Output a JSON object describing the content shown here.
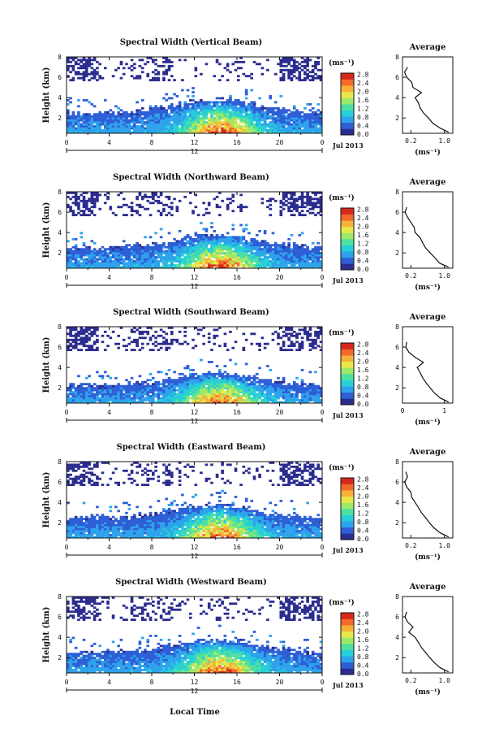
{
  "figure": {
    "x_axis_label": "Local Time",
    "date_label": "Jul 2013",
    "colorbar_unit": "(ms⁻¹)",
    "colorbar_ticks": [
      "0.0",
      "0.4",
      "0.8",
      "1.2",
      "1.6",
      "2.0",
      "2.4",
      "2.8"
    ],
    "colorbar_colors": [
      "#2b2d8f",
      "#2f5fd6",
      "#2ea3ec",
      "#27cfd6",
      "#4fe0a0",
      "#9ee86a",
      "#e8e84a",
      "#f7b03a",
      "#f36a2a",
      "#d7281e"
    ],
    "avg_title": "Average",
    "avg_xlabel": "(ms⁻¹)"
  },
  "chart_data": [
    {
      "type": "heatmap",
      "title": "Spectral Width (Vertical Beam)",
      "ylabel": "Height (km)",
      "xlabel": "Local Time",
      "x_ticks": [
        "0",
        "4",
        "8",
        "12",
        "16",
        "20",
        "0"
      ],
      "x_sub_label": "12",
      "y_ticks": [
        "2",
        "4",
        "6",
        "8"
      ],
      "ylim": [
        0.5,
        8
      ],
      "xlim": [
        0,
        24
      ],
      "colorbar": {
        "unit": "(ms⁻¹)",
        "range": [
          0,
          2.8
        ]
      },
      "date": "Jul 2013",
      "average": {
        "title": "Average",
        "xlabel": "(ms⁻¹)",
        "x_ticks": [
          "0.2",
          "1.0"
        ],
        "y_ticks": [
          "2",
          "4",
          "6",
          "8"
        ],
        "xlim": [
          0,
          1.2
        ],
        "profile": [
          [
            1.1,
            0.6
          ],
          [
            0.9,
            1
          ],
          [
            0.72,
            1.5
          ],
          [
            0.62,
            2
          ],
          [
            0.5,
            2.5
          ],
          [
            0.42,
            3
          ],
          [
            0.38,
            3.5
          ],
          [
            0.3,
            4
          ],
          [
            0.45,
            4.5
          ],
          [
            0.25,
            5
          ],
          [
            0.22,
            5.5
          ],
          [
            0.1,
            6
          ],
          [
            0.05,
            6.5
          ],
          [
            0.12,
            7
          ]
        ]
      }
    },
    {
      "type": "heatmap",
      "title": "Spectral Width (Northward Beam)",
      "ylabel": "Height (km)",
      "xlabel": "Local Time",
      "x_ticks": [
        "0",
        "4",
        "8",
        "12",
        "16",
        "20",
        "0"
      ],
      "x_sub_label": "12",
      "y_ticks": [
        "2",
        "4",
        "6",
        "8"
      ],
      "ylim": [
        0.5,
        8
      ],
      "xlim": [
        0,
        24
      ],
      "colorbar": {
        "unit": "(ms⁻¹)",
        "range": [
          0,
          2.8
        ]
      },
      "date": "Jul 2013",
      "average": {
        "title": "Average",
        "xlabel": "(ms⁻¹)",
        "x_ticks": [
          "0.2",
          "1.0"
        ],
        "y_ticks": [
          "2",
          "4",
          "6",
          "8"
        ],
        "xlim": [
          0,
          1.2
        ],
        "profile": [
          [
            1.1,
            0.6
          ],
          [
            0.88,
            1
          ],
          [
            0.78,
            1.5
          ],
          [
            0.66,
            2
          ],
          [
            0.55,
            2.5
          ],
          [
            0.48,
            3
          ],
          [
            0.42,
            3.5
          ],
          [
            0.3,
            4
          ],
          [
            0.28,
            4.5
          ],
          [
            0.2,
            5
          ],
          [
            0.12,
            5.5
          ],
          [
            0.06,
            6
          ],
          [
            0.1,
            6.5
          ]
        ]
      }
    },
    {
      "type": "heatmap",
      "title": "Spectral Width (Southward Beam)",
      "ylabel": "Height (km)",
      "xlabel": "Local Time",
      "x_ticks": [
        "0",
        "4",
        "8",
        "12",
        "16",
        "20",
        "0"
      ],
      "x_sub_label": "12",
      "y_ticks": [
        "2",
        "4",
        "6",
        "8"
      ],
      "ylim": [
        0.5,
        8
      ],
      "xlim": [
        0,
        24
      ],
      "colorbar": {
        "unit": "(ms⁻¹)",
        "range": [
          0,
          2.8
        ]
      },
      "date": "Jul 2013",
      "average": {
        "title": "Average",
        "xlabel": "(ms⁻¹)",
        "x_ticks": [
          "0",
          "1"
        ],
        "y_ticks": [
          "2",
          "4",
          "6",
          "8"
        ],
        "xlim": [
          0,
          1.2
        ],
        "profile": [
          [
            1.1,
            0.6
          ],
          [
            0.9,
            1
          ],
          [
            0.76,
            1.5
          ],
          [
            0.66,
            2
          ],
          [
            0.56,
            2.5
          ],
          [
            0.48,
            3
          ],
          [
            0.42,
            3.5
          ],
          [
            0.35,
            4
          ],
          [
            0.5,
            4.5
          ],
          [
            0.3,
            5
          ],
          [
            0.15,
            5.5
          ],
          [
            0.08,
            6
          ],
          [
            0.1,
            6.5
          ]
        ]
      }
    },
    {
      "type": "heatmap",
      "title": "Spectral Width (Eastward Beam)",
      "ylabel": "Height (km)",
      "xlabel": "Local Time",
      "x_ticks": [
        "0",
        "4",
        "8",
        "12",
        "16",
        "20",
        "0"
      ],
      "x_sub_label": "12",
      "y_ticks": [
        "2",
        "4",
        "6",
        "8"
      ],
      "ylim": [
        0.5,
        8
      ],
      "xlim": [
        0,
        24
      ],
      "colorbar": {
        "unit": "(ms⁻¹)",
        "range": [
          0,
          2.8
        ]
      },
      "date": "Jul 2013",
      "average": {
        "title": "Average",
        "xlabel": "(ms⁻¹)",
        "x_ticks": [
          "0.2",
          "1.0"
        ],
        "y_ticks": [
          "2",
          "4",
          "6",
          "8"
        ],
        "xlim": [
          0,
          1.2
        ],
        "profile": [
          [
            1.1,
            0.6
          ],
          [
            0.9,
            1
          ],
          [
            0.75,
            1.5
          ],
          [
            0.64,
            2
          ],
          [
            0.55,
            2.5
          ],
          [
            0.45,
            3
          ],
          [
            0.38,
            3.5
          ],
          [
            0.3,
            4
          ],
          [
            0.22,
            4.5
          ],
          [
            0.2,
            5
          ],
          [
            0.1,
            5.5
          ],
          [
            0.05,
            6
          ],
          [
            0.12,
            6.5
          ],
          [
            0.08,
            7
          ]
        ]
      }
    },
    {
      "type": "heatmap",
      "title": "Spectral Width (Westward Beam)",
      "ylabel": "Height (km)",
      "xlabel": "Local Time",
      "x_ticks": [
        "0",
        "4",
        "8",
        "12",
        "16",
        "20",
        "0"
      ],
      "x_sub_label": "12",
      "y_ticks": [
        "2",
        "4",
        "6",
        "8"
      ],
      "ylim": [
        0.5,
        8
      ],
      "xlim": [
        0,
        24
      ],
      "colorbar": {
        "unit": "(ms⁻¹)",
        "range": [
          0,
          2.8
        ]
      },
      "date": "Jul 2013",
      "average": {
        "title": "Average",
        "xlabel": "(ms⁻¹)",
        "x_ticks": [
          "0.2",
          "1.0"
        ],
        "y_ticks": [
          "2",
          "4",
          "6",
          "8"
        ],
        "xlim": [
          0,
          1.2
        ],
        "profile": [
          [
            1.1,
            0.6
          ],
          [
            0.9,
            1
          ],
          [
            0.76,
            1.5
          ],
          [
            0.65,
            2
          ],
          [
            0.55,
            2.5
          ],
          [
            0.45,
            3
          ],
          [
            0.38,
            3.5
          ],
          [
            0.3,
            4
          ],
          [
            0.15,
            4.5
          ],
          [
            0.25,
            5
          ],
          [
            0.12,
            5.5
          ],
          [
            0.06,
            6
          ],
          [
            0.1,
            6.5
          ]
        ]
      }
    }
  ]
}
